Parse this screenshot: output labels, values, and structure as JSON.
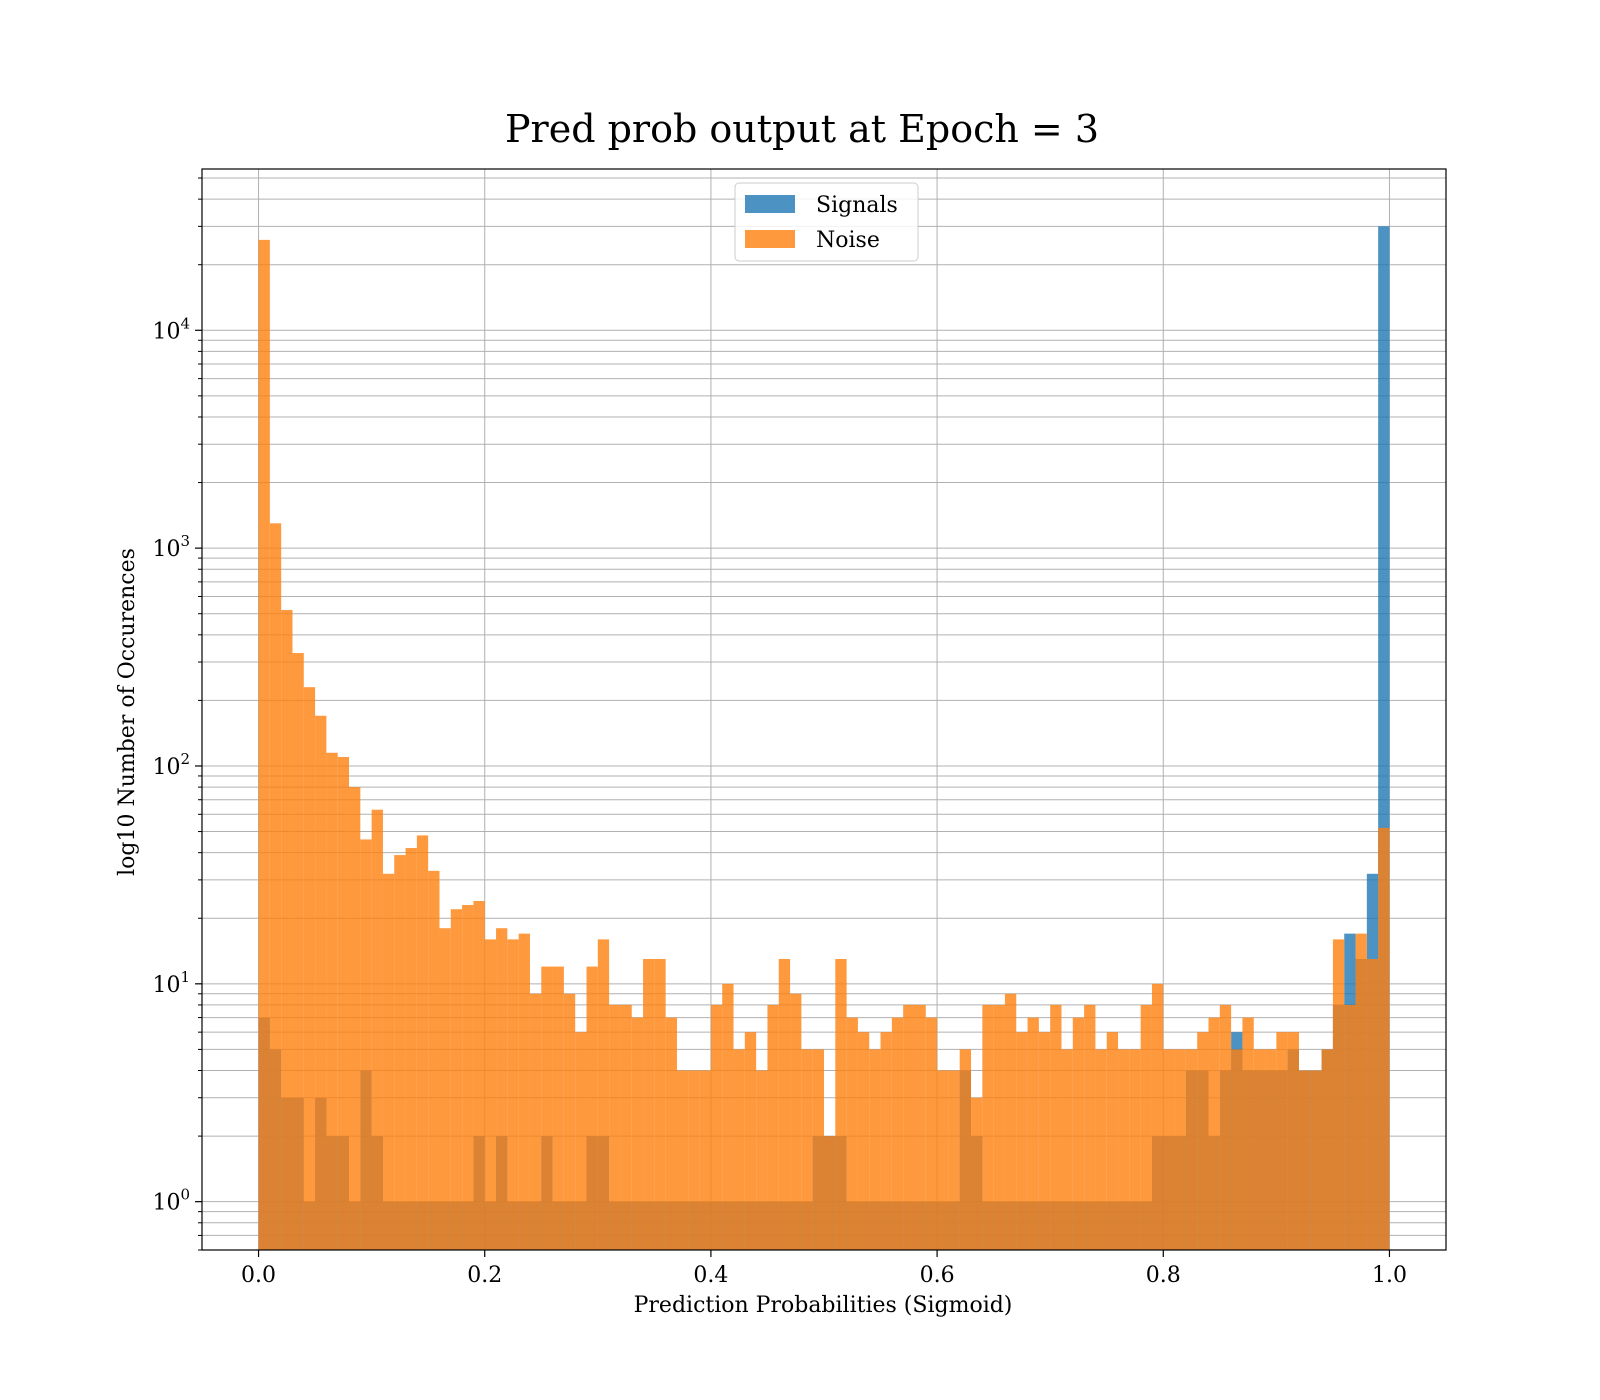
{
  "chart_data": {
    "type": "bar",
    "title": "Pred prob output at Epoch = 3",
    "xlabel": "Prediction Probabilities (Sigmoid)",
    "ylabel": "log10 Number of Occurences",
    "xlim": [
      -0.05,
      1.05
    ],
    "ylim": [
      0.6,
      55000
    ],
    "y_scale": "log",
    "grid": true,
    "legend_position": "top-center",
    "x_ticks": [
      "0.0",
      "0.2",
      "0.4",
      "0.6",
      "0.8",
      "1.0"
    ],
    "y_ticks": [
      {
        "base": "10",
        "exp": "0",
        "value": 1
      },
      {
        "base": "10",
        "exp": "1",
        "value": 10
      },
      {
        "base": "10",
        "exp": "2",
        "value": 100
      },
      {
        "base": "10",
        "exp": "3",
        "value": 1000
      },
      {
        "base": "10",
        "exp": "4",
        "value": 10000
      }
    ],
    "bin_start": 0.0,
    "bin_width": 0.01,
    "series": [
      {
        "name": "Signals",
        "color": "#1f77b4",
        "values": [
          7,
          5,
          3,
          3,
          1,
          3,
          2,
          2,
          1,
          4,
          2,
          1,
          1,
          1,
          1,
          1,
          1,
          1,
          1,
          2,
          1,
          2,
          1,
          1,
          1,
          2,
          1,
          1,
          1,
          2,
          2,
          1,
          1,
          1,
          1,
          1,
          1,
          1,
          1,
          1,
          1,
          1,
          1,
          1,
          1,
          1,
          1,
          1,
          1,
          2,
          2,
          2,
          1,
          1,
          1,
          1,
          1,
          1,
          1,
          1,
          1,
          1,
          4,
          2,
          1,
          1,
          1,
          1,
          1,
          1,
          1,
          1,
          1,
          1,
          1,
          1,
          1,
          1,
          1,
          2,
          2,
          2,
          4,
          4,
          2,
          4,
          6,
          4,
          4,
          4,
          4,
          5,
          4,
          4,
          5,
          8,
          17,
          13,
          32,
          30000
        ]
      },
      {
        "name": "Noise",
        "color": "#ff7f0e",
        "values": [
          26000,
          1300,
          520,
          330,
          230,
          170,
          115,
          110,
          80,
          46,
          63,
          32,
          39,
          42,
          48,
          33,
          18,
          22,
          23,
          24,
          16,
          18,
          16,
          17,
          9,
          12,
          12,
          9,
          6,
          12,
          16,
          8,
          8,
          7,
          13,
          13,
          7,
          4,
          4,
          4,
          8,
          10,
          5,
          6,
          4,
          8,
          13,
          9,
          5,
          5,
          2,
          13,
          7,
          6,
          5,
          6,
          7,
          8,
          8,
          7,
          4,
          4,
          5,
          3,
          8,
          8,
          9,
          6,
          7,
          6,
          8,
          5,
          7,
          8,
          5,
          6,
          5,
          5,
          8,
          10,
          5,
          5,
          5,
          6,
          7,
          8,
          5,
          7,
          5,
          5,
          6,
          6,
          4,
          4,
          5,
          16,
          8,
          17,
          13,
          52
        ]
      }
    ]
  }
}
